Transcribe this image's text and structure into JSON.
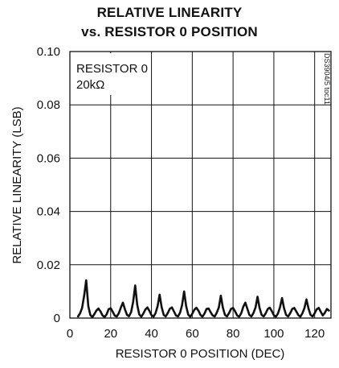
{
  "chart_data": {
    "type": "line",
    "title": "RELATIVE LINEARITY",
    "subtitle": "vs. RESISTOR 0 POSITION",
    "xlabel": "RESISTOR 0 POSITION (DEC)",
    "ylabel": "RELATIVE LINEARITY (LSB)",
    "xlim": [
      0,
      128
    ],
    "ylim": [
      0,
      0.1
    ],
    "x_ticks": [
      "0",
      "20",
      "40",
      "60",
      "80",
      "100",
      "120"
    ],
    "y_ticks": [
      "0",
      "0.02",
      "0.04",
      "0.06",
      "0.08",
      "0.10"
    ],
    "grid": true,
    "annotation": [
      "RESISTOR 0",
      "20kΩ"
    ],
    "side_label": "DS3904/5 toc11",
    "series": [
      {
        "x": [
          4,
          5,
          6,
          7,
          8,
          9,
          10,
          11,
          12,
          13,
          14,
          15,
          16,
          17,
          18,
          19,
          20,
          21,
          22,
          23,
          24,
          25,
          26,
          27,
          28,
          29,
          30,
          31,
          32,
          33,
          34,
          35,
          36,
          37,
          38,
          39,
          40,
          41,
          42,
          43,
          44,
          45,
          46,
          47,
          48,
          49,
          50,
          51,
          52,
          53,
          54,
          55,
          56,
          57,
          58,
          59,
          60,
          61,
          62,
          63,
          64,
          65,
          66,
          67,
          68,
          69,
          70,
          71,
          72,
          73,
          74,
          75,
          76,
          77,
          78,
          79,
          80,
          81,
          82,
          83,
          84,
          85,
          86,
          87,
          88,
          89,
          90,
          91,
          92,
          93,
          94,
          95,
          96,
          97,
          98,
          99,
          100,
          101,
          102,
          103,
          104,
          105,
          106,
          107,
          108,
          109,
          110,
          111,
          112,
          113,
          114,
          115,
          116,
          117,
          118,
          119,
          120,
          121,
          122,
          123,
          124,
          125,
          126,
          127
        ],
        "values": [
          0.0006,
          0.0018,
          0.0038,
          0.0085,
          0.0142,
          0.0045,
          0.0012,
          0.0003,
          0.0015,
          0.0028,
          0.0036,
          0.0025,
          0.001,
          0.0004,
          0.0014,
          0.0033,
          0.0037,
          0.0024,
          0.0009,
          0.0006,
          0.0018,
          0.004,
          0.0058,
          0.0032,
          0.0012,
          0.0007,
          0.0022,
          0.006,
          0.0122,
          0.005,
          0.0014,
          0.0005,
          0.0017,
          0.0032,
          0.004,
          0.0027,
          0.0011,
          0.0005,
          0.0018,
          0.0045,
          0.0088,
          0.004,
          0.0012,
          0.0006,
          0.0019,
          0.0035,
          0.004,
          0.0025,
          0.001,
          0.0006,
          0.002,
          0.0048,
          0.01,
          0.0045,
          0.0013,
          0.0005,
          0.0016,
          0.0031,
          0.0039,
          0.0028,
          0.0012,
          0.0005,
          0.0017,
          0.0034,
          0.0036,
          0.0022,
          0.001,
          0.0006,
          0.002,
          0.004,
          0.0084,
          0.004,
          0.0012,
          0.0006,
          0.0018,
          0.0034,
          0.0038,
          0.0025,
          0.001,
          0.0005,
          0.0018,
          0.0042,
          0.0058,
          0.0035,
          0.0012,
          0.0006,
          0.0019,
          0.004,
          0.008,
          0.0038,
          0.0012,
          0.0006,
          0.0018,
          0.0034,
          0.0039,
          0.0026,
          0.0011,
          0.0005,
          0.0017,
          0.004,
          0.0075,
          0.0037,
          0.0012,
          0.0006,
          0.0018,
          0.0034,
          0.0038,
          0.0025,
          0.0011,
          0.0005,
          0.0018,
          0.0038,
          0.007,
          0.0035,
          0.0012,
          0.0006,
          0.0018,
          0.0033,
          0.0038,
          0.0024,
          0.001,
          0.002,
          0.0034,
          0.0028
        ]
      }
    ]
  }
}
